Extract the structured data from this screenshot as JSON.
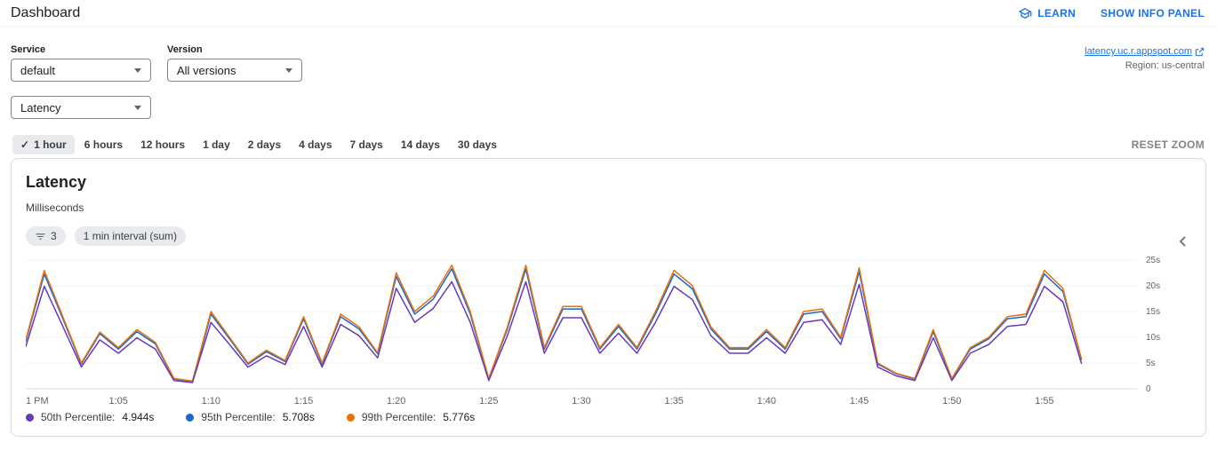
{
  "header": {
    "title": "Dashboard",
    "learn_label": "LEARN",
    "show_info_panel_label": "SHOW INFO PANEL"
  },
  "filters": {
    "service_label": "Service",
    "service_value": "default",
    "version_label": "Version",
    "version_value": "All versions",
    "app_link": "latency.uc.r.appspot.com",
    "region_label": "Region: us-central"
  },
  "metric": {
    "value": "Latency"
  },
  "time_range": {
    "options": [
      "1 hour",
      "6 hours",
      "12 hours",
      "1 day",
      "2 days",
      "4 days",
      "7 days",
      "14 days",
      "30 days"
    ],
    "selected": "1 hour",
    "reset_zoom_label": "RESET ZOOM"
  },
  "chart_card": {
    "title": "Latency",
    "subtitle": "Milliseconds",
    "filter_chip_count": "3",
    "interval_chip": "1 min interval (sum)"
  },
  "chart_data": {
    "type": "line",
    "title": "Latency",
    "ylabel": "Milliseconds",
    "ylim": [
      0,
      25
    ],
    "x_range_minutes": 60,
    "x_start_time": "1 PM",
    "grid": true,
    "legend_position": "bottom",
    "y_ticks": [
      {
        "value": 0,
        "label": "0"
      },
      {
        "value": 5,
        "label": "5s"
      },
      {
        "value": 10,
        "label": "10s"
      },
      {
        "value": 15,
        "label": "15s"
      },
      {
        "value": 20,
        "label": "20s"
      },
      {
        "value": 25,
        "label": "25s"
      }
    ],
    "x_ticks": [
      {
        "minute": 0,
        "label": "1 PM"
      },
      {
        "minute": 5,
        "label": "1:05"
      },
      {
        "minute": 10,
        "label": "1:10"
      },
      {
        "minute": 15,
        "label": "1:15"
      },
      {
        "minute": 20,
        "label": "1:20"
      },
      {
        "minute": 25,
        "label": "1:25"
      },
      {
        "minute": 30,
        "label": "1:30"
      },
      {
        "minute": 35,
        "label": "1:35"
      },
      {
        "minute": 40,
        "label": "1:40"
      },
      {
        "minute": 45,
        "label": "1:45"
      },
      {
        "minute": 50,
        "label": "1:50"
      },
      {
        "minute": 55,
        "label": "1:55"
      }
    ],
    "draw_order": [
      1,
      2,
      0
    ],
    "series": [
      {
        "name": "50th Percentile",
        "current": "4.944s",
        "color": "#673ab7",
        "unit": "seconds",
        "values": [
          8.2,
          19.9,
          12.1,
          4.2,
          9.5,
          6.9,
          9.9,
          7.7,
          1.6,
          1.2,
          12.9,
          8.6,
          4.2,
          6.4,
          4.7,
          12.1,
          4.2,
          12.5,
          10.3,
          6,
          19.5,
          12.9,
          15.6,
          20.8,
          12.9,
          1.6,
          10.3,
          20.8,
          6.9,
          13.8,
          13.8,
          6.9,
          10.8,
          6.9,
          12.9,
          19.9,
          17.3,
          10.3,
          6.9,
          6.9,
          9.9,
          6.9,
          12.9,
          13.4,
          8.6,
          20.3,
          4.2,
          2.5,
          1.6,
          9.9,
          1.6,
          6.9,
          8.6,
          12.1,
          12.5,
          19.9,
          16.9,
          4.944
        ]
      },
      {
        "name": "95th Percentile",
        "current": "5.708s",
        "color": "#1967d2",
        "unit": "seconds",
        "values": [
          9.2,
          22.3,
          13.6,
          4.8,
          10.7,
          7.7,
          11.1,
          8.7,
          1.9,
          1.4,
          14.5,
          9.7,
          4.8,
          7.2,
          5.3,
          13.6,
          4.8,
          14,
          11.6,
          6.8,
          21.8,
          14.5,
          17.4,
          23.3,
          14.5,
          1.9,
          11.6,
          23.3,
          7.7,
          15.5,
          15.5,
          7.7,
          12.1,
          7.7,
          14.5,
          22.3,
          19.4,
          11.6,
          7.7,
          7.7,
          11.1,
          7.7,
          14.5,
          15,
          9.7,
          22.8,
          4.8,
          2.9,
          1.9,
          11.1,
          1.9,
          7.7,
          9.7,
          13.6,
          14,
          22.3,
          18.9,
          5.708
        ]
      },
      {
        "name": "99th Percentile",
        "current": "5.776s",
        "color": "#e8710a",
        "unit": "seconds",
        "values": [
          9.5,
          23,
          14,
          5,
          11,
          8,
          11.5,
          9,
          2,
          1.5,
          15,
          10,
          5,
          7.5,
          5.5,
          14,
          5,
          14.5,
          12,
          7,
          22.5,
          15,
          18,
          24,
          15,
          2,
          12,
          24,
          8,
          16,
          16,
          8,
          12.5,
          8,
          15,
          23,
          20,
          12,
          8,
          8,
          11.5,
          8,
          15,
          15.5,
          10,
          23.5,
          5,
          3,
          2,
          11.5,
          2,
          8,
          10,
          14,
          14.5,
          23,
          19.5,
          5.776
        ]
      }
    ]
  }
}
